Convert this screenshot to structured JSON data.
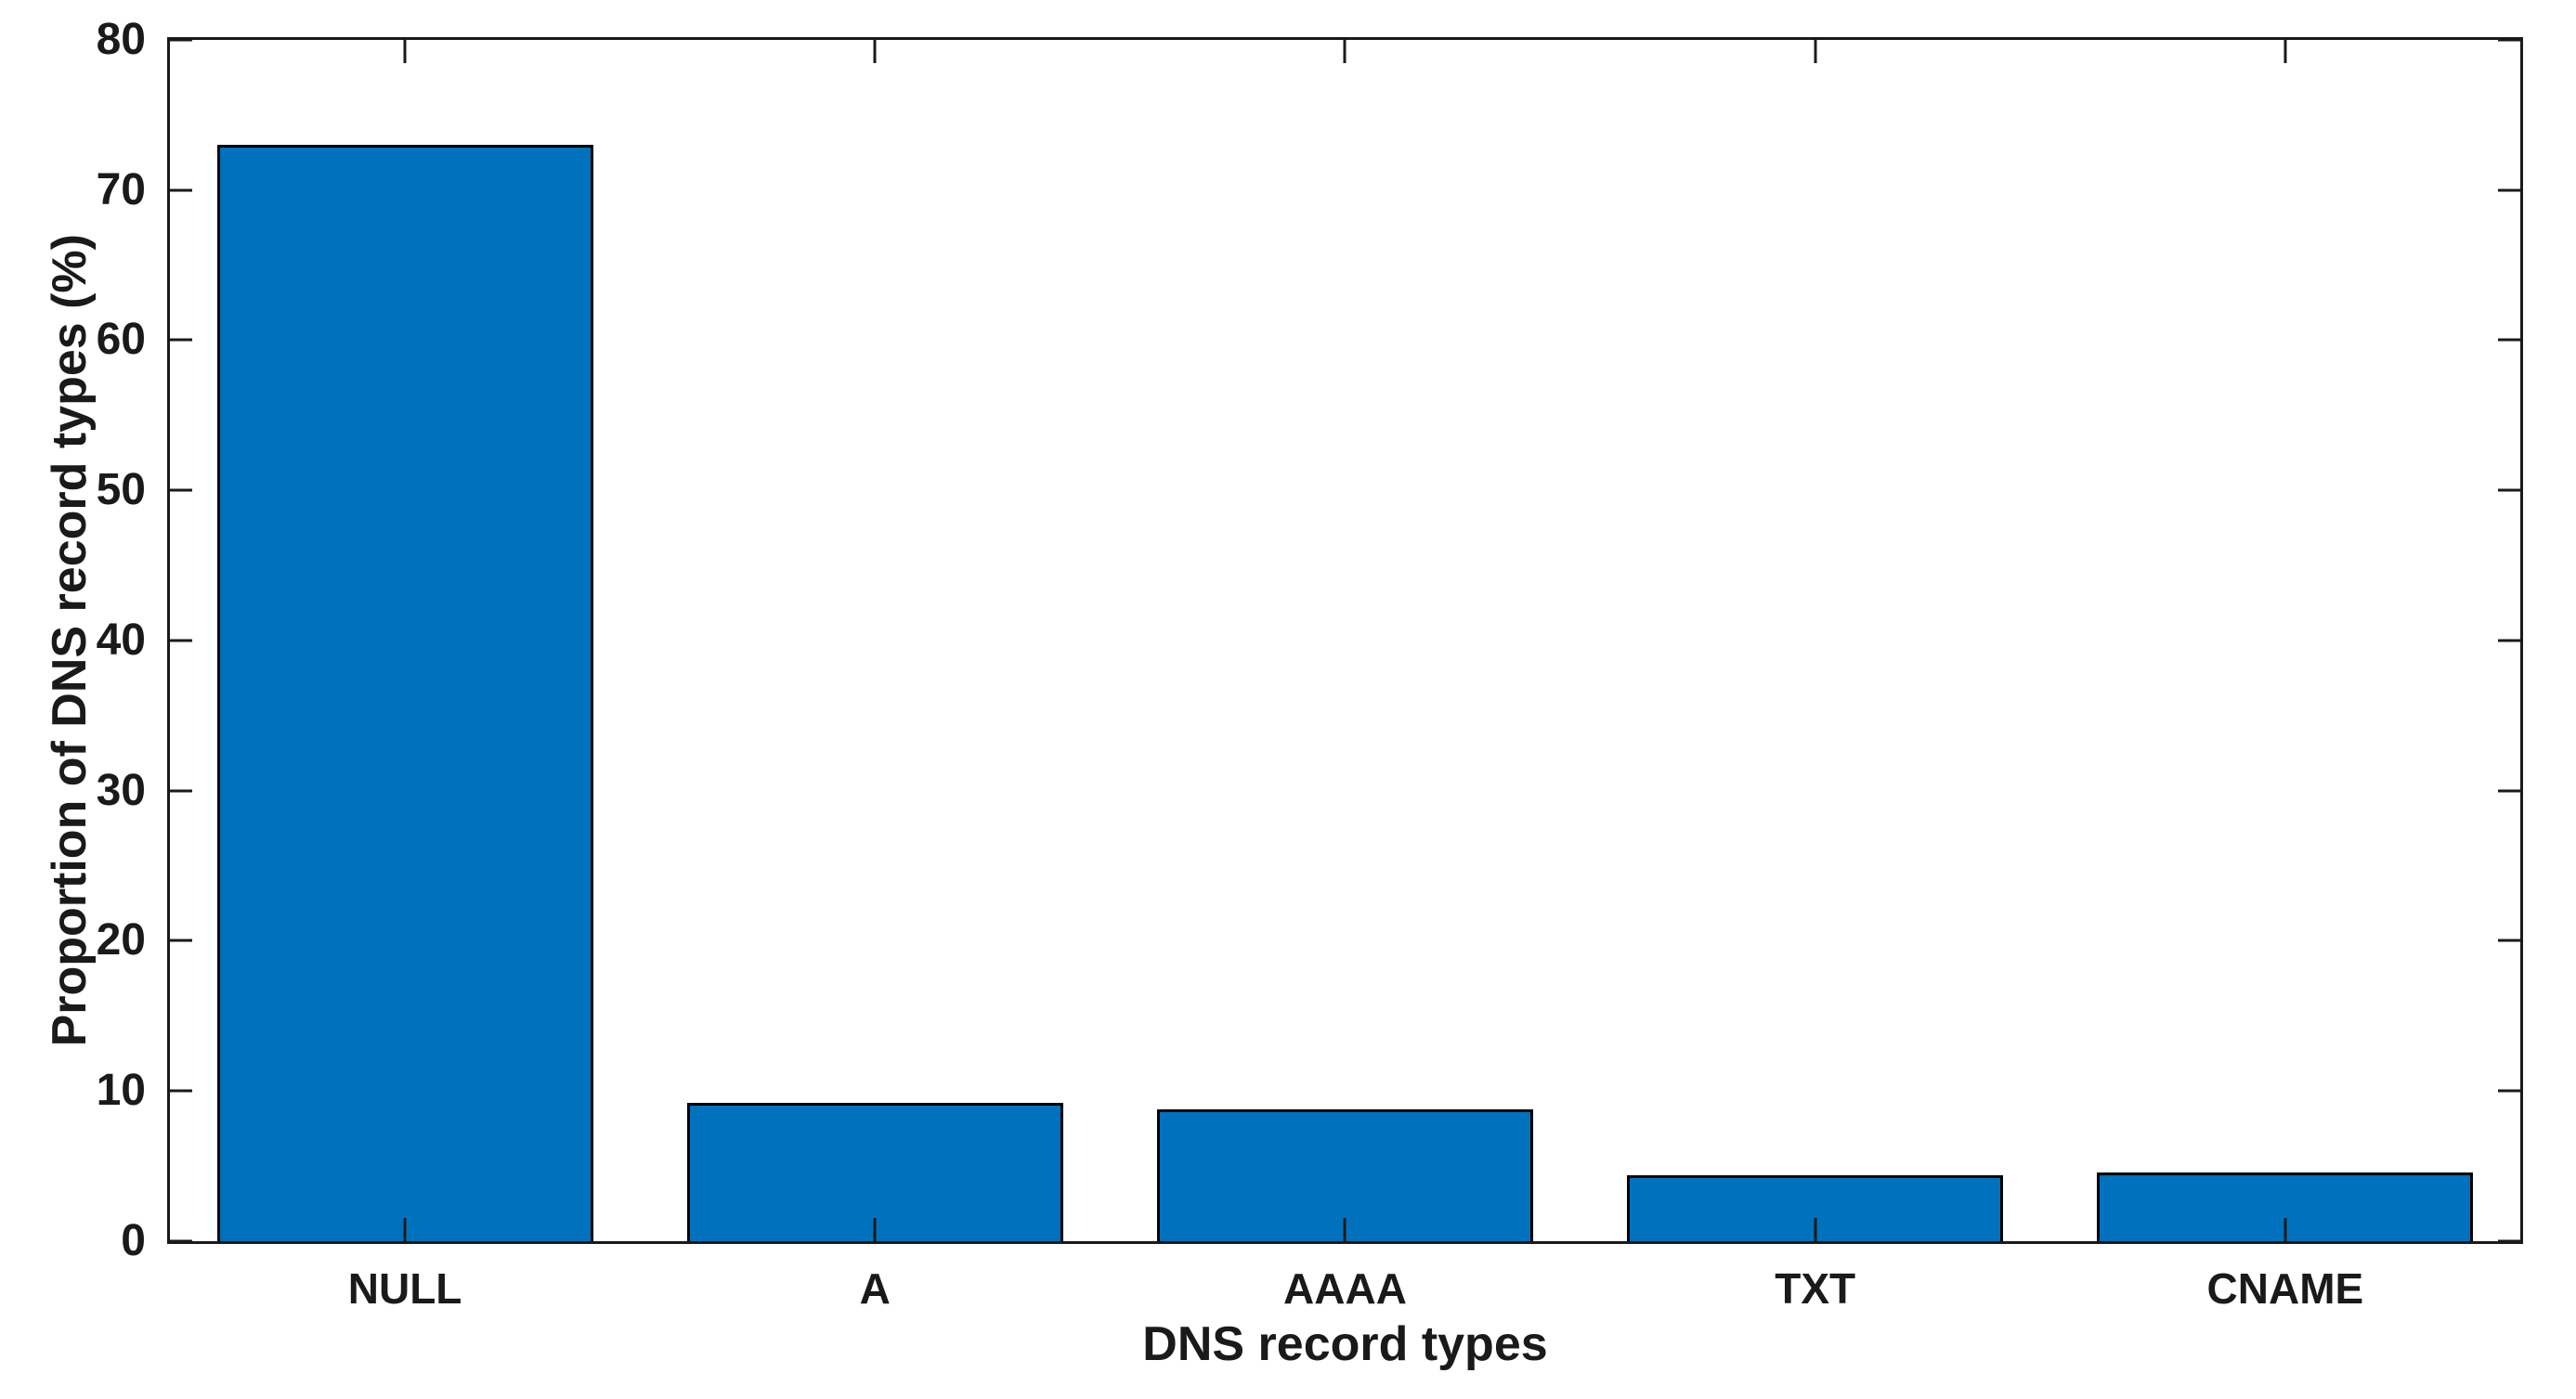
{
  "chart_data": {
    "type": "bar",
    "title": "",
    "xlabel": "DNS record types",
    "ylabel": "Proportion of DNS record types (%)",
    "categories": [
      "NULL",
      "A",
      "AAAA",
      "TXT",
      "CNAME"
    ],
    "values": [
      73,
      9.2,
      8.8,
      4.4,
      4.6
    ],
    "ylim": [
      0,
      80
    ],
    "yticks": [
      0,
      10,
      20,
      30,
      40,
      50,
      60,
      70,
      80
    ],
    "bar_width_fraction": 0.8,
    "grid": false,
    "legend": "none",
    "colors": {
      "bar_fill": "#0072BD",
      "bar_edge": "#000000",
      "axis": "#1a1a1a",
      "text": "#1a1a1a",
      "background": "#ffffff"
    }
  }
}
